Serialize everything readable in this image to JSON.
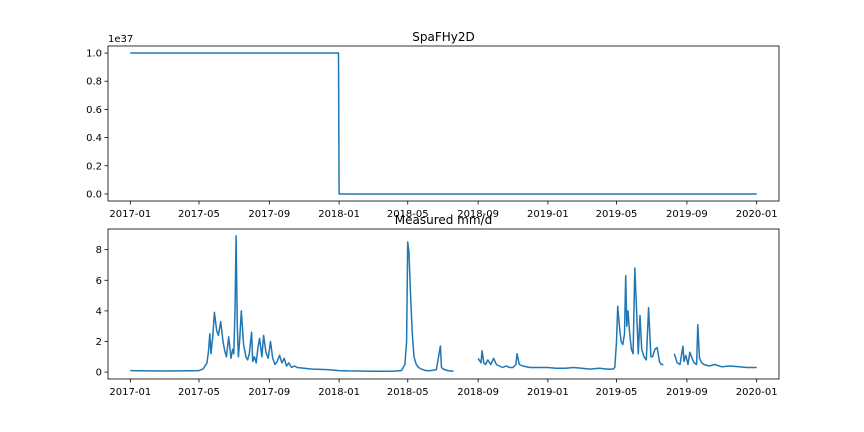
{
  "chart_data": [
    {
      "type": "line",
      "title": "SpaFHy2D",
      "xlabel": "",
      "ylabel": "",
      "y_multiplier_label": "1e37",
      "y_scale_factor": 1e+37,
      "line_color": "#1f77b4",
      "x_ticks": [
        "2017-01",
        "2017-05",
        "2017-09",
        "2018-01",
        "2018-05",
        "2018-09",
        "2019-01",
        "2019-05",
        "2019-09",
        "2020-01"
      ],
      "y_ticks": [
        "0.0",
        "0.2",
        "0.4",
        "0.6",
        "0.8",
        "1.0"
      ],
      "ylim": [
        -0.05,
        1.05
      ],
      "xlim": [
        "2016-11-23",
        "2020-02-09"
      ],
      "grid": false,
      "series": [
        {
          "x": [
            "2017-01-01",
            "2017-12-31",
            "2018-01-01",
            "2020-01-01"
          ],
          "y": [
            1.0,
            1.0,
            0.0,
            0.0
          ]
        }
      ]
    },
    {
      "type": "line",
      "title": "Measured mm/d",
      "xlabel": "",
      "ylabel": "",
      "line_color": "#1f77b4",
      "x_ticks": [
        "2017-01",
        "2017-05",
        "2017-09",
        "2018-01",
        "2018-05",
        "2018-09",
        "2019-01",
        "2019-05",
        "2019-09",
        "2020-01"
      ],
      "y_ticks": [
        "0",
        "2",
        "4",
        "6",
        "8"
      ],
      "ylim": [
        -0.45,
        9.35
      ],
      "xlim": [
        "2016-11-23",
        "2020-02-09"
      ],
      "grid": false,
      "segments": [
        {
          "x": [
            "2017-01-01",
            "2017-02-01",
            "2017-03-01",
            "2017-04-01",
            "2017-05-01",
            "2017-05-08",
            "2017-05-15",
            "2017-05-18",
            "2017-05-20",
            "2017-05-22",
            "2017-05-25",
            "2017-05-28",
            "2017-06-01",
            "2017-06-04",
            "2017-06-08",
            "2017-06-12",
            "2017-06-15",
            "2017-06-18",
            "2017-06-22",
            "2017-06-26",
            "2017-06-29",
            "2017-07-01",
            "2017-07-03",
            "2017-07-05",
            "2017-07-07",
            "2017-07-09",
            "2017-07-11",
            "2017-07-14",
            "2017-07-18",
            "2017-07-22",
            "2017-07-25",
            "2017-07-28",
            "2017-08-01",
            "2017-08-03",
            "2017-08-06",
            "2017-08-09",
            "2017-08-12",
            "2017-08-15",
            "2017-08-19",
            "2017-08-22",
            "2017-08-26",
            "2017-08-30",
            "2017-09-03",
            "2017-09-07",
            "2017-09-11",
            "2017-09-15",
            "2017-09-19",
            "2017-09-23",
            "2017-09-27",
            "2017-10-01",
            "2017-10-05",
            "2017-10-10",
            "2017-10-15",
            "2017-10-20",
            "2017-11-01",
            "2017-11-15",
            "2017-12-01",
            "2017-12-15",
            "2018-01-01",
            "2018-01-15",
            "2018-02-01",
            "2018-03-01",
            "2018-04-01",
            "2018-04-10",
            "2018-04-20",
            "2018-04-26",
            "2018-04-29",
            "2018-05-01",
            "2018-05-03",
            "2018-05-06",
            "2018-05-09",
            "2018-05-12",
            "2018-05-16",
            "2018-05-20",
            "2018-05-25",
            "2018-06-01",
            "2018-06-10",
            "2018-06-20",
            "2018-06-27",
            "2018-06-29",
            "2018-07-02",
            "2018-07-10",
            "2018-07-20"
          ],
          "y": [
            0.1,
            0.08,
            0.07,
            0.08,
            0.1,
            0.2,
            0.6,
            1.5,
            2.5,
            1.2,
            2.3,
            3.9,
            2.7,
            2.4,
            3.3,
            2.0,
            1.4,
            1.0,
            2.3,
            0.9,
            1.5,
            1.2,
            4.0,
            8.9,
            3.0,
            1.0,
            2.0,
            4.0,
            1.8,
            1.0,
            0.8,
            1.2,
            2.6,
            0.7,
            1.0,
            0.6,
            1.6,
            2.2,
            1.0,
            2.4,
            1.3,
            0.9,
            2.0,
            0.9,
            0.5,
            0.7,
            1.1,
            0.6,
            0.9,
            0.4,
            0.6,
            0.3,
            0.4,
            0.3,
            0.25,
            0.2,
            0.18,
            0.15,
            0.1,
            0.08,
            0.07,
            0.06,
            0.06,
            0.07,
            0.1,
            0.5,
            2.0,
            8.5,
            7.9,
            5.0,
            2.5,
            1.0,
            0.5,
            0.3,
            0.2,
            0.1,
            0.1,
            0.15,
            1.7,
            0.3,
            0.2,
            0.1,
            0.05
          ]
        },
        {
          "x": [
            "2018-09-01",
            "2018-09-06",
            "2018-09-08",
            "2018-09-11",
            "2018-09-14",
            "2018-09-18",
            "2018-09-23",
            "2018-09-28",
            "2018-10-03",
            "2018-10-08",
            "2018-10-14",
            "2018-10-20",
            "2018-10-26",
            "2018-11-01",
            "2018-11-06",
            "2018-11-08",
            "2018-11-12",
            "2018-11-18",
            "2018-12-01",
            "2018-12-15",
            "2019-01-01",
            "2019-01-15",
            "2019-02-01",
            "2019-02-15",
            "2019-03-01",
            "2019-03-15",
            "2019-04-01",
            "2019-04-15",
            "2019-04-25",
            "2019-04-28",
            "2019-05-01",
            "2019-05-03",
            "2019-05-06",
            "2019-05-09",
            "2019-05-12",
            "2019-05-15",
            "2019-05-17",
            "2019-05-19",
            "2019-05-21",
            "2019-05-24",
            "2019-05-27",
            "2019-05-30",
            "2019-06-02",
            "2019-06-05",
            "2019-06-08",
            "2019-06-11",
            "2019-06-14",
            "2019-06-18",
            "2019-06-22",
            "2019-06-26",
            "2019-06-30",
            "2019-07-03",
            "2019-07-07",
            "2019-07-11",
            "2019-07-15",
            "2019-07-18",
            "2019-07-22"
          ],
          "y": [
            0.9,
            0.6,
            1.4,
            0.6,
            0.5,
            0.8,
            0.5,
            0.9,
            0.5,
            0.4,
            0.3,
            0.4,
            0.3,
            0.3,
            0.5,
            1.2,
            0.5,
            0.4,
            0.3,
            0.3,
            0.3,
            0.25,
            0.25,
            0.3,
            0.25,
            0.2,
            0.25,
            0.2,
            0.2,
            0.3,
            2.0,
            4.3,
            3.0,
            2.0,
            1.8,
            2.5,
            6.3,
            3.0,
            4.0,
            2.5,
            1.5,
            1.2,
            6.8,
            4.0,
            1.2,
            3.7,
            1.5,
            1.0,
            0.8,
            4.2,
            1.0,
            1.0,
            1.5,
            1.6,
            0.7,
            0.5,
            0.5
          ]
        },
        {
          "x": [
            "2019-08-10",
            "2019-08-15",
            "2019-08-20",
            "2019-08-25",
            "2019-08-27",
            "2019-08-30",
            "2019-09-03",
            "2019-09-06",
            "2019-09-10",
            "2019-09-14",
            "2019-09-18",
            "2019-09-20",
            "2019-09-23",
            "2019-09-27",
            "2019-10-01",
            "2019-10-10",
            "2019-10-20",
            "2019-11-01",
            "2019-11-15",
            "2019-12-01",
            "2019-12-15",
            "2020-01-01"
          ],
          "y": [
            1.2,
            0.6,
            0.5,
            1.7,
            0.7,
            1.1,
            0.5,
            1.3,
            0.9,
            0.6,
            0.5,
            3.1,
            0.9,
            0.6,
            0.5,
            0.4,
            0.5,
            0.35,
            0.4,
            0.35,
            0.3,
            0.3
          ]
        }
      ]
    }
  ]
}
